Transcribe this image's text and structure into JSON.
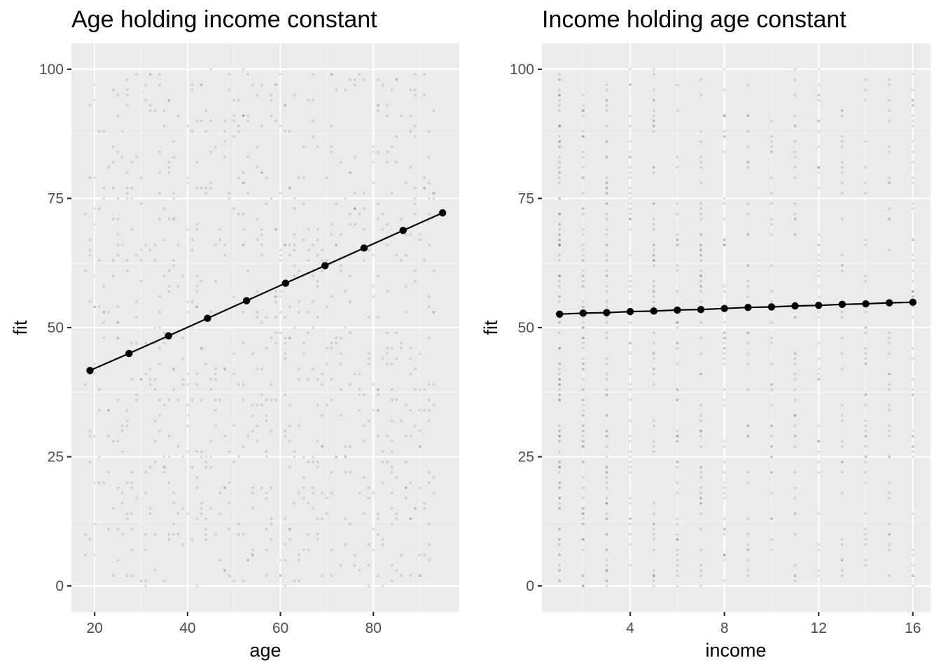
{
  "chart_data": [
    {
      "type": "line",
      "title": "Age holding income constant",
      "xlabel": "age",
      "ylabel": "fit",
      "xlim": [
        15,
        98.5
      ],
      "ylim": [
        -5,
        105
      ],
      "x_ticks": [
        20,
        40,
        60,
        80
      ],
      "x_tick_labels": [
        "20",
        "40",
        "60",
        "80"
      ],
      "x_minor_ticks": [
        30,
        50,
        70,
        90
      ],
      "y_ticks": [
        0,
        25,
        50,
        75,
        100
      ],
      "y_tick_labels": [
        "0",
        "25",
        "50",
        "75",
        "100"
      ],
      "y_minor_ticks": [
        12.5,
        37.5,
        62.5,
        87.5
      ],
      "grid": true,
      "series": [
        {
          "x": [
            19,
            27.4,
            35.9,
            44.3,
            52.7,
            61.1,
            69.6,
            78.0,
            86.4,
            94.9
          ],
          "y": [
            41.7,
            45.0,
            48.4,
            51.8,
            55.2,
            58.6,
            62.0,
            65.4,
            68.8,
            72.2
          ]
        }
      ],
      "background_points": {
        "description": "semi-transparent raw observations (grey jittered dots)",
        "x_range": [
          18,
          93
        ],
        "y_range": [
          0,
          100
        ],
        "approx_count": 900
      }
    },
    {
      "type": "line",
      "title": "Income holding age constant",
      "xlabel": "income",
      "ylabel": "fit",
      "xlim": [
        0.25,
        16.75
      ],
      "ylim": [
        -5,
        105
      ],
      "x_ticks": [
        4,
        8,
        12,
        16
      ],
      "x_tick_labels": [
        "4",
        "8",
        "12",
        "16"
      ],
      "x_minor_ticks": [
        2,
        6,
        10,
        14
      ],
      "y_ticks": [
        0,
        25,
        50,
        75,
        100
      ],
      "y_tick_labels": [
        "0",
        "25",
        "50",
        "75",
        "100"
      ],
      "y_minor_ticks": [
        12.5,
        37.5,
        62.5,
        87.5
      ],
      "grid": true,
      "series": [
        {
          "x": [
            1,
            2,
            3,
            4,
            5,
            6,
            7,
            8,
            9,
            10,
            11,
            12,
            13,
            14,
            15,
            16
          ],
          "y": [
            52.6,
            52.8,
            52.9,
            53.1,
            53.2,
            53.4,
            53.5,
            53.7,
            53.9,
            54.0,
            54.2,
            54.3,
            54.5,
            54.6,
            54.8,
            54.9
          ]
        }
      ],
      "background_points": {
        "description": "semi-transparent raw observations stacked at integer income values",
        "x_values": [
          1,
          2,
          3,
          4,
          5,
          6,
          7,
          8,
          9,
          10,
          11,
          12,
          13,
          14,
          15,
          16
        ],
        "y_range": [
          0,
          100
        ],
        "approx_count": 900
      }
    }
  ],
  "colors": {
    "panel_background": "#ebebeb",
    "grid_major": "#ffffff",
    "grid_minor": "#f5f5f5",
    "line": "#000000",
    "points": "#000000",
    "raw_points": "#666666"
  }
}
